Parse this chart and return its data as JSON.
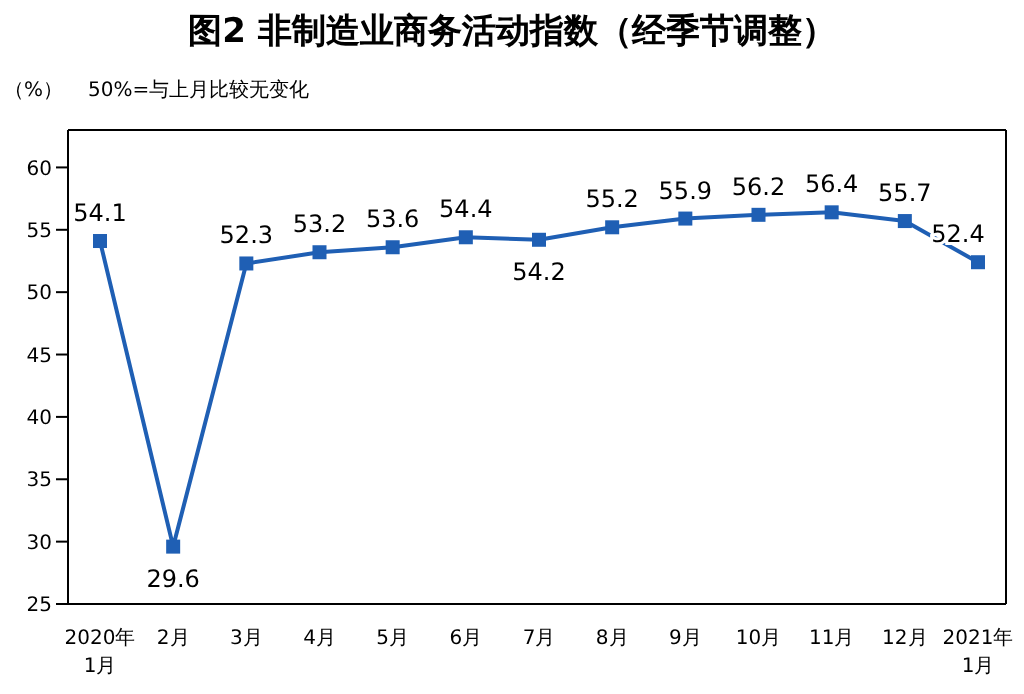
{
  "chart_data": {
    "type": "line",
    "title": "图2  非制造业商务活动指数（经季节调整）",
    "annotations": [
      "（%）",
      "50%=与上月比较无变化"
    ],
    "categories": [
      "2020年\n1月",
      "2月",
      "3月",
      "4月",
      "5月",
      "6月",
      "7月",
      "8月",
      "9月",
      "10月",
      "11月",
      "12月",
      "2021年\n1月"
    ],
    "series": [
      {
        "color": "#1f5fb4",
        "values": [
          54.1,
          29.6,
          52.3,
          53.2,
          53.6,
          54.4,
          54.2,
          55.2,
          55.9,
          56.2,
          56.4,
          55.7,
          52.4
        ]
      }
    ],
    "ylim": [
      25,
      63
    ],
    "yticks": [
      25,
      30,
      35,
      40,
      45,
      50,
      55,
      60
    ],
    "grid": false,
    "legend": false,
    "marker": "square",
    "line_style": "solid",
    "data_labels": true
  }
}
